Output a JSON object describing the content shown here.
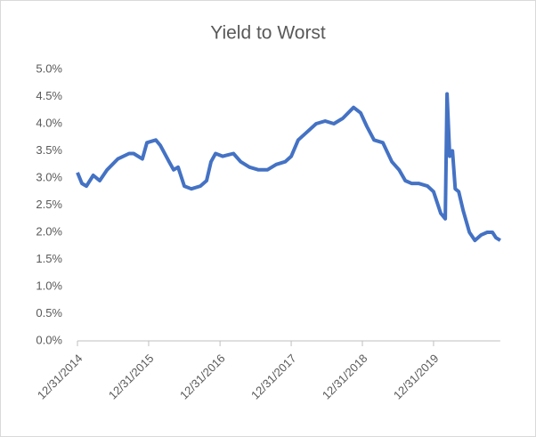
{
  "chart_data": {
    "type": "line",
    "title": "Yield to Worst",
    "x": [
      "12/31/2014",
      "1/23/2015",
      "2/15/2015",
      "3/22/2015",
      "4/24/2015",
      "6/1/2015",
      "7/26/2015",
      "9/22/2015",
      "10/15/2015",
      "11/29/2015",
      "12/22/2015",
      "2/6/2016",
      "2/29/2016",
      "4/14/2016",
      "5/7/2016",
      "5/30/2016",
      "7/1/2016",
      "8/6/2016",
      "9/21/2016",
      "10/23/2016",
      "11/15/2016",
      "12/8/2016",
      "1/14/2017",
      "3/10/2017",
      "4/16/2017",
      "5/31/2017",
      "7/16/2017",
      "8/31/2017",
      "10/15/2017",
      "11/30/2017",
      "12/31/2017",
      "2/5/2018",
      "3/23/2018",
      "5/8/2018",
      "6/23/2018",
      "8/7/2018",
      "9/22/2018",
      "11/16/2018",
      "12/22/2018",
      "1/23/2019",
      "3/1/2019",
      "4/15/2019",
      "5/31/2019",
      "7/7/2019",
      "8/8/2019",
      "9/9/2019",
      "10/15/2019",
      "11/30/2019",
      "12/31/2019",
      "2/6/2020",
      "2/29/2020",
      "3/9/2020",
      "3/23/2020",
      "4/6/2020",
      "4/20/2020",
      "5/8/2020",
      "5/31/2020",
      "7/2/2020",
      "7/30/2020",
      "8/30/2020",
      "10/1/2020",
      "10/28/2020",
      "11/15/2020",
      "12/7/2020"
    ],
    "series": [
      {
        "color": "#4472c4",
        "values": [
          3.1,
          2.9,
          2.85,
          3.05,
          2.95,
          3.15,
          3.35,
          3.45,
          3.45,
          3.35,
          3.65,
          3.7,
          3.6,
          3.3,
          3.15,
          3.2,
          2.85,
          2.8,
          2.85,
          2.95,
          3.3,
          3.45,
          3.4,
          3.45,
          3.3,
          3.2,
          3.15,
          3.15,
          3.25,
          3.3,
          3.4,
          3.7,
          3.85,
          4.0,
          4.05,
          4.0,
          4.1,
          4.3,
          4.2,
          3.95,
          3.7,
          3.65,
          3.3,
          3.15,
          2.95,
          2.9,
          2.9,
          2.85,
          2.75,
          2.35,
          2.25,
          4.55,
          3.4,
          3.5,
          2.8,
          2.75,
          2.4,
          2.0,
          1.85,
          1.95,
          2.0,
          2.0,
          1.9,
          1.85
        ]
      }
    ],
    "xlim": [
      "12/31/2014",
      "12/7/2020"
    ],
    "xticks": [
      "12/31/2014",
      "12/31/2015",
      "12/31/2016",
      "12/31/2017",
      "12/31/2018",
      "12/31/2019"
    ],
    "ylim": [
      0,
      5
    ],
    "yticks": [
      {
        "value": 0,
        "label": "0.0%"
      },
      {
        "value": 0.5,
        "label": "0.5%"
      },
      {
        "value": 1,
        "label": "1.0%"
      },
      {
        "value": 1.5,
        "label": "1.5%"
      },
      {
        "value": 2,
        "label": "2.0%"
      },
      {
        "value": 2.5,
        "label": "2.5%"
      },
      {
        "value": 3,
        "label": "3.0%"
      },
      {
        "value": 3.5,
        "label": "3.5%"
      },
      {
        "value": 4,
        "label": "4.0%"
      },
      {
        "value": 4.5,
        "label": "4.5%"
      },
      {
        "value": 5,
        "label": "5.0%"
      }
    ],
    "grid": false
  }
}
